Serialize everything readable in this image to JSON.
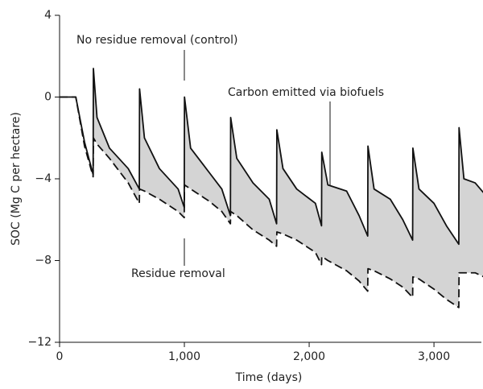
{
  "chart_data": {
    "type": "line",
    "x_label": "Time (days)",
    "y_label": "SOC (Mg C per hectare)",
    "x": [
      0,
      130,
      200,
      269,
      271,
      300,
      400,
      550,
      639,
      641,
      680,
      800,
      950,
      999,
      1001,
      1050,
      1200,
      1300,
      1369,
      1371,
      1420,
      1550,
      1680,
      1739,
      1741,
      1790,
      1900,
      2050,
      2099,
      2101,
      2150,
      2300,
      2400,
      2469,
      2471,
      2520,
      2650,
      2750,
      2829,
      2831,
      2880,
      3000,
      3100,
      3199,
      3201,
      3240,
      3330,
      3400
    ],
    "series": [
      {
        "color": "#111111",
        "dash": false,
        "values": [
          0,
          0,
          -2.2,
          -3.8,
          1.4,
          -1,
          -2.5,
          -3.5,
          -4.5,
          0.4,
          -2,
          -3.5,
          -4.5,
          -5.4,
          0,
          -2.5,
          -3.7,
          -4.5,
          -5.8,
          -1,
          -3,
          -4.2,
          -5,
          -6.2,
          -1.6,
          -3.5,
          -4.5,
          -5.2,
          -6.3,
          -2.7,
          -4.3,
          -4.6,
          -5.8,
          -6.8,
          -2.4,
          -4.5,
          -5,
          -6,
          -7,
          -2.5,
          -4.5,
          -5.2,
          -6.3,
          -7.2,
          -1.5,
          -4,
          -4.2,
          -4.7
        ]
      },
      {
        "color": "#111111",
        "dash": true,
        "values": [
          0,
          0,
          -2.4,
          -3.9,
          -2,
          -2.3,
          -3,
          -4.2,
          -5.2,
          -4.5,
          -4.6,
          -5,
          -5.6,
          -5.9,
          -4.3,
          -4.5,
          -5.1,
          -5.6,
          -6.2,
          -5.6,
          -5.8,
          -6.5,
          -7,
          -7.3,
          -6.6,
          -6.7,
          -7,
          -7.6,
          -8.2,
          -7.8,
          -8,
          -8.5,
          -9,
          -9.5,
          -8.4,
          -8.5,
          -8.9,
          -9.3,
          -9.8,
          -8.8,
          -8.9,
          -9.4,
          -9.9,
          -10.3,
          -8.6,
          -8.6,
          -8.6,
          -8.8
        ]
      }
    ],
    "fill_between_color": "#d4d4d4",
    "xlim": [
      0,
      3380
    ],
    "ylim": [
      -12,
      4
    ],
    "xticks": [
      0,
      {
        "value": 1000,
        "label": "1,000"
      },
      {
        "value": 2000,
        "label": "2,000"
      },
      {
        "value": 3000,
        "label": "3,000"
      }
    ],
    "yticks": [
      {
        "value": -12,
        "label": "−12"
      },
      {
        "value": -8,
        "label": "−8"
      },
      {
        "value": -4,
        "label": "−4"
      },
      0,
      4
    ],
    "annotations": [
      "No residue removal (control)",
      "Carbon emitted via biofuels",
      "Residue removal"
    ]
  }
}
